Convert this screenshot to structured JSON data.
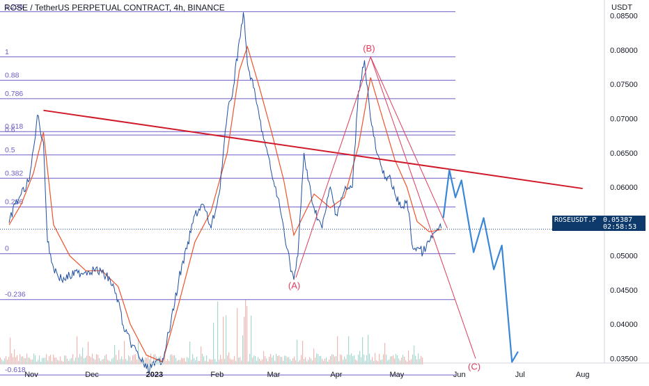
{
  "header": {
    "title": "ROSE / TetherUS PERPETUAL CONTRACT, 4h, BINANCE"
  },
  "axis": {
    "currency": "USDT"
  },
  "price_badge": {
    "symbol": "ROSEUSDT.P",
    "price": "0.05387",
    "countdown": "02:58:53",
    "color": "#0d3a6b"
  },
  "colors": {
    "price": "#1e4fa0",
    "ma": "#f0522a",
    "fib": "#6b5bc4",
    "trend": "#d01a2a",
    "wave": "#e03a5a",
    "projection": "#3a86d8",
    "volume": "#6cbfb0"
  },
  "chart_data": {
    "type": "line",
    "title": "ROSE / TetherUS PERPETUAL CONTRACT, 4h, BINANCE",
    "xlabel": "",
    "ylabel": "USDT",
    "ylim": [
      0.0315,
      0.0873
    ],
    "x_ticks": [
      "Nov",
      "Dec",
      "2023",
      "Feb",
      "Mar",
      "Apr",
      "May",
      "Jun",
      "Jul",
      "Aug"
    ],
    "y_ticks": [
      "0.03500",
      "0.04000",
      "0.04500",
      "0.05000",
      "0.05500",
      "0.06000",
      "0.06500",
      "0.07000",
      "0.07500",
      "0.08000",
      "0.08500"
    ],
    "series": [
      {
        "name": "price",
        "x": [
          "2022-10-21",
          "2022-10-24",
          "2022-10-27",
          "2022-10-31",
          "2022-11-02",
          "2022-11-04",
          "2022-11-07",
          "2022-11-09",
          "2022-11-12",
          "2022-11-16",
          "2022-11-20",
          "2022-11-24",
          "2022-11-28",
          "2022-12-02",
          "2022-12-06",
          "2022-12-10",
          "2022-12-14",
          "2022-12-17",
          "2022-12-20",
          "2022-12-24",
          "2022-12-28",
          "2023-01-01",
          "2023-01-05",
          "2023-01-09",
          "2023-01-13",
          "2023-01-17",
          "2023-01-21",
          "2023-01-25",
          "2023-01-29",
          "2023-02-02",
          "2023-02-06",
          "2023-02-09",
          "2023-02-12",
          "2023-02-14",
          "2023-02-16",
          "2023-02-19",
          "2023-02-22",
          "2023-02-25",
          "2023-02-28",
          "2023-03-03",
          "2023-03-06",
          "2023-03-09",
          "2023-03-11",
          "2023-03-13",
          "2023-03-16",
          "2023-03-18",
          "2023-03-21",
          "2023-03-25",
          "2023-03-29",
          "2023-04-01",
          "2023-04-05",
          "2023-04-09",
          "2023-04-12",
          "2023-04-15",
          "2023-04-18",
          "2023-04-21",
          "2023-04-24",
          "2023-04-27",
          "2023-04-30",
          "2023-05-03",
          "2023-05-06",
          "2023-05-09",
          "2023-05-11",
          "2023-05-14",
          "2023-05-17",
          "2023-05-20",
          "2023-05-23"
        ],
        "values": [
          0.0548,
          0.0575,
          0.059,
          0.061,
          0.0655,
          0.0705,
          0.0665,
          0.052,
          0.0482,
          0.0465,
          0.047,
          0.0475,
          0.0477,
          0.048,
          0.0475,
          0.0465,
          0.0435,
          0.039,
          0.0375,
          0.0355,
          0.0335,
          0.034,
          0.035,
          0.04,
          0.0465,
          0.051,
          0.056,
          0.0575,
          0.054,
          0.059,
          0.0705,
          0.0745,
          0.0815,
          0.0855,
          0.078,
          0.0745,
          0.07,
          0.066,
          0.062,
          0.0585,
          0.054,
          0.049,
          0.0465,
          0.05,
          0.065,
          0.061,
          0.057,
          0.054,
          0.06,
          0.056,
          0.0595,
          0.06,
          0.074,
          0.0785,
          0.07,
          0.065,
          0.062,
          0.0615,
          0.059,
          0.057,
          0.058,
          0.051,
          0.0512,
          0.0505,
          0.052,
          0.0535,
          0.054
        ]
      },
      {
        "name": "ma",
        "x": [
          "2022-10-21",
          "2022-10-27",
          "2022-11-02",
          "2022-11-07",
          "2022-11-12",
          "2022-11-20",
          "2022-11-28",
          "2022-12-06",
          "2022-12-14",
          "2022-12-20",
          "2022-12-28",
          "2023-01-05",
          "2023-01-13",
          "2023-01-21",
          "2023-01-29",
          "2023-02-06",
          "2023-02-12",
          "2023-02-16",
          "2023-02-22",
          "2023-02-28",
          "2023-03-06",
          "2023-03-11",
          "2023-03-16",
          "2023-03-21",
          "2023-03-29",
          "2023-04-05",
          "2023-04-12",
          "2023-04-18",
          "2023-04-24",
          "2023-04-30",
          "2023-05-06",
          "2023-05-11",
          "2023-05-17",
          "2023-05-23"
        ],
        "values": [
          0.0545,
          0.0575,
          0.062,
          0.068,
          0.0545,
          0.05,
          0.0478,
          0.0478,
          0.0455,
          0.04,
          0.0355,
          0.0345,
          0.043,
          0.052,
          0.0565,
          0.065,
          0.077,
          0.0805,
          0.0745,
          0.068,
          0.061,
          0.053,
          0.056,
          0.059,
          0.057,
          0.0585,
          0.066,
          0.076,
          0.07,
          0.064,
          0.06,
          0.055,
          0.0535,
          0.0538
        ]
      },
      {
        "name": "projection",
        "x": [
          "2023-05-24",
          "2023-05-27",
          "2023-05-30",
          "2023-06-02",
          "2023-06-08",
          "2023-06-13",
          "2023-06-18",
          "2023-06-22",
          "2023-06-27",
          "2023-06-30"
        ],
        "values": [
          0.0555,
          0.0625,
          0.0585,
          0.061,
          0.0505,
          0.0555,
          0.048,
          0.0515,
          0.0345,
          0.036
        ]
      }
    ],
    "fib_levels": [
      {
        "label": "1.236",
        "value": 0.0856
      },
      {
        "label": "1",
        "value": 0.079
      },
      {
        "label": "0.88",
        "value": 0.0756
      },
      {
        "label": "0.786",
        "value": 0.0729
      },
      {
        "label": "0.618",
        "value": 0.0681
      },
      {
        "label": "0.6",
        "value": 0.0676
      },
      {
        "label": "0.5",
        "value": 0.0647
      },
      {
        "label": "0.382",
        "value": 0.0613
      },
      {
        "label": "0.236",
        "value": 0.0571
      },
      {
        "label": "0",
        "value": 0.0503
      },
      {
        "label": "-0.236",
        "value": 0.0436
      },
      {
        "label": "-0.618",
        "value": 0.0326
      }
    ],
    "trendline": [
      {
        "x": "2022-11-07",
        "y": 0.0712
      },
      {
        "x": "2023-08-01",
        "y": 0.0598
      }
    ],
    "waves": [
      {
        "label": "(A)",
        "x": "2023-03-12",
        "y": 0.0468
      },
      {
        "label": "(B)",
        "x": "2023-04-18",
        "y": 0.079
      },
      {
        "label": "(C)",
        "x": "2023-06-09",
        "y": 0.035
      }
    ],
    "current_price": 0.05387
  }
}
